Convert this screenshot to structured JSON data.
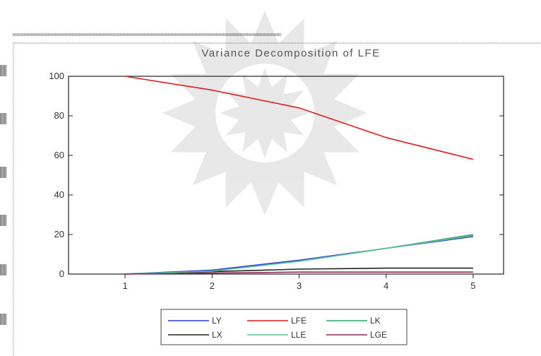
{
  "chart_data": {
    "type": "line",
    "title": "Variance Decomposition of LFE",
    "xlabel": "",
    "ylabel": "",
    "x": [
      1,
      2,
      3,
      4,
      5
    ],
    "xlim": [
      0.35,
      5.35
    ],
    "ylim": [
      0,
      100
    ],
    "yticks": [
      0,
      20,
      40,
      60,
      80,
      100
    ],
    "grid": false,
    "legend_position": "bottom",
    "series": [
      {
        "name": "LY",
        "color": "#2a3bd6",
        "values": [
          0,
          2,
          7,
          13,
          19
        ]
      },
      {
        "name": "LFE",
        "color": "#e21b1b",
        "values": [
          100,
          93,
          84,
          69,
          58
        ]
      },
      {
        "name": "LK",
        "color": "#27a85a",
        "values": [
          0,
          1.5,
          6.5,
          13,
          20
        ]
      },
      {
        "name": "LX",
        "color": "#222222",
        "values": [
          0,
          1.2,
          2.5,
          3,
          3
        ]
      },
      {
        "name": "LLE",
        "color": "#5fbf9a",
        "values": [
          0,
          1.5,
          6.5,
          13,
          19.5
        ]
      },
      {
        "name": "LGE",
        "color": "#8a2a5a",
        "values": [
          0,
          0.5,
          1,
          1,
          1
        ]
      }
    ]
  }
}
